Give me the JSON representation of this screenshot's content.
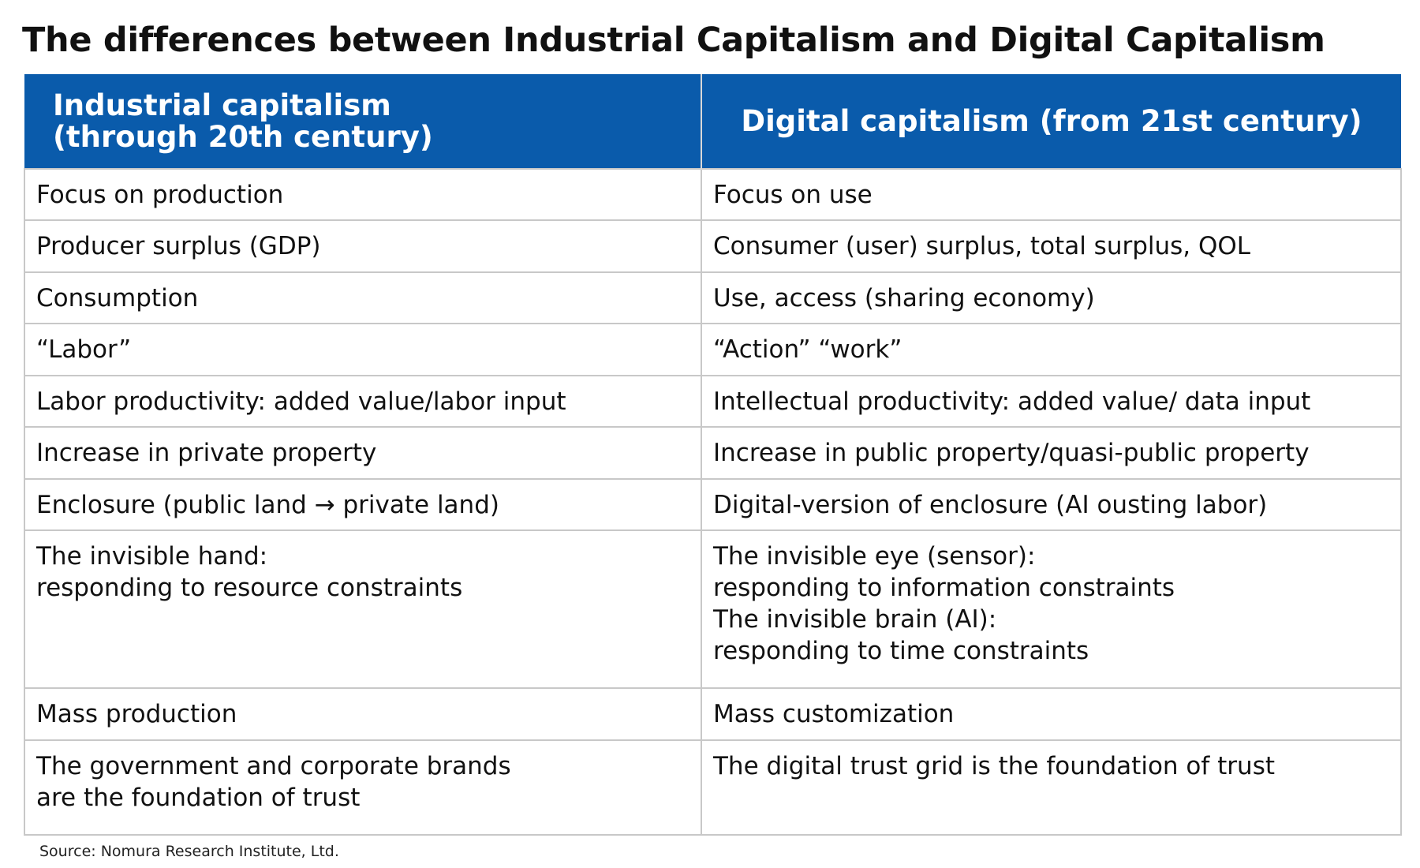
{
  "title": "The differences between Industrial Capitalism and Digital Capitalism",
  "table": {
    "headers": [
      "Industrial capitalism\n(through 20th century)",
      "Digital capitalism (from 21st century)"
    ],
    "rows": [
      [
        "Focus on production",
        "Focus on use"
      ],
      [
        "Producer surplus (GDP)",
        "Consumer (user) surplus, total surplus, QOL"
      ],
      [
        "Consumption",
        "Use, access (sharing economy)"
      ],
      [
        "“Labor”",
        "“Action” “work”"
      ],
      [
        "Labor productivity: added value/labor input",
        "Intellectual productivity: added value/ data input"
      ],
      [
        "Increase in private property",
        "Increase in public property/quasi-public property"
      ],
      [
        "Enclosure (public land → private land)",
        "Digital-version of enclosure (AI ousting labor)"
      ],
      [
        "The invisible hand:\nresponding to resource constraints",
        "The invisible eye (sensor):\nresponding to information constraints\nThe invisible brain (AI):\nresponding to time constraints"
      ],
      [
        "Mass production",
        "Mass customization"
      ],
      [
        "The government and corporate brands\nare the  foundation of trust",
        "The digital trust grid is the foundation of trust"
      ]
    ]
  },
  "source": "Source: Nomura Research Institute, Ltd."
}
